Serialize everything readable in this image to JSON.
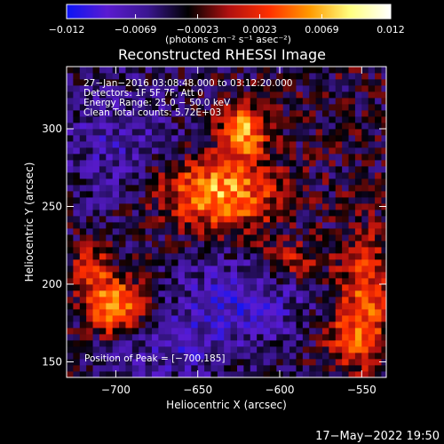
{
  "chart_data": {
    "type": "heatmap",
    "title": "Reconstructed RHESSI Image",
    "xlabel": "Heliocentric X (arcsec)",
    "ylabel": "Heliocentric Y (arcsec)",
    "xlim": [
      -730,
      -535
    ],
    "ylim": [
      140,
      340
    ],
    "x_ticks": [
      -700,
      -650,
      -600,
      -550
    ],
    "x_tick_labels": [
      "−700",
      "−650",
      "−600",
      "−550"
    ],
    "y_ticks": [
      150,
      200,
      250,
      300
    ],
    "y_tick_labels": [
      "150",
      "200",
      "250",
      "300"
    ],
    "colorbar": {
      "min": -0.012,
      "max": 0.012,
      "ticks": [
        -0.012,
        -0.0069,
        -0.0023,
        0.0023,
        0.0069,
        0.012
      ],
      "tick_labels": [
        "−0.012",
        "−0.0069",
        "−0.0023",
        "0.0023",
        "0.0069",
        "0.012"
      ],
      "units": "(photons cm⁻² s⁻¹ asec⁻²)",
      "colormap": [
        "#0b14f5",
        "#5a1bd0",
        "#3a1690",
        "#000000",
        "#b01010",
        "#ff3000",
        "#ff9a00",
        "#ffff80",
        "#ffffff"
      ]
    },
    "info_lines": [
      "27−Jan−2016 03:08:48.000 to 03:12:20.000",
      "Detectors: 1F 5F 7F, Att 0",
      "Energy Range: 25.0 − 50.0 keV",
      "Clean    Total counts: 5.72E+03"
    ],
    "peak_label": "Position of Peak = [−700,185]",
    "sources": [
      {
        "x": -645,
        "y": 262,
        "sigma_x": 24,
        "sigma_y": 14,
        "amp": 0.007
      },
      {
        "x": -622,
        "y": 298,
        "sigma_x": 10,
        "sigma_y": 12,
        "amp": 0.01
      },
      {
        "x": -628,
        "y": 250,
        "sigma_x": 22,
        "sigma_y": 16,
        "amp": 0.005
      },
      {
        "x": -700,
        "y": 185,
        "sigma_x": 12,
        "sigma_y": 13,
        "amp": 0.011
      },
      {
        "x": -715,
        "y": 210,
        "sigma_x": 8,
        "sigma_y": 10,
        "amp": 0.006
      },
      {
        "x": -595,
        "y": 215,
        "sigma_x": 15,
        "sigma_y": 9,
        "amp": 0.006
      },
      {
        "x": -548,
        "y": 190,
        "sigma_x": 12,
        "sigma_y": 28,
        "amp": 0.007
      },
      {
        "x": -560,
        "y": 165,
        "sigma_x": 10,
        "sigma_y": 12,
        "amp": 0.004
      }
    ],
    "negative_regions": [
      {
        "x": -620,
        "y": 195,
        "sigma_x": 30,
        "sigma_y": 25,
        "amp": -0.005
      },
      {
        "x": -700,
        "y": 290,
        "sigma_x": 30,
        "sigma_y": 30,
        "amp": -0.004
      },
      {
        "x": -670,
        "y": 160,
        "sigma_x": 30,
        "sigma_y": 20,
        "amp": -0.004
      }
    ]
  },
  "footer": {
    "date_stamp": "17−May−2022 19:50"
  }
}
